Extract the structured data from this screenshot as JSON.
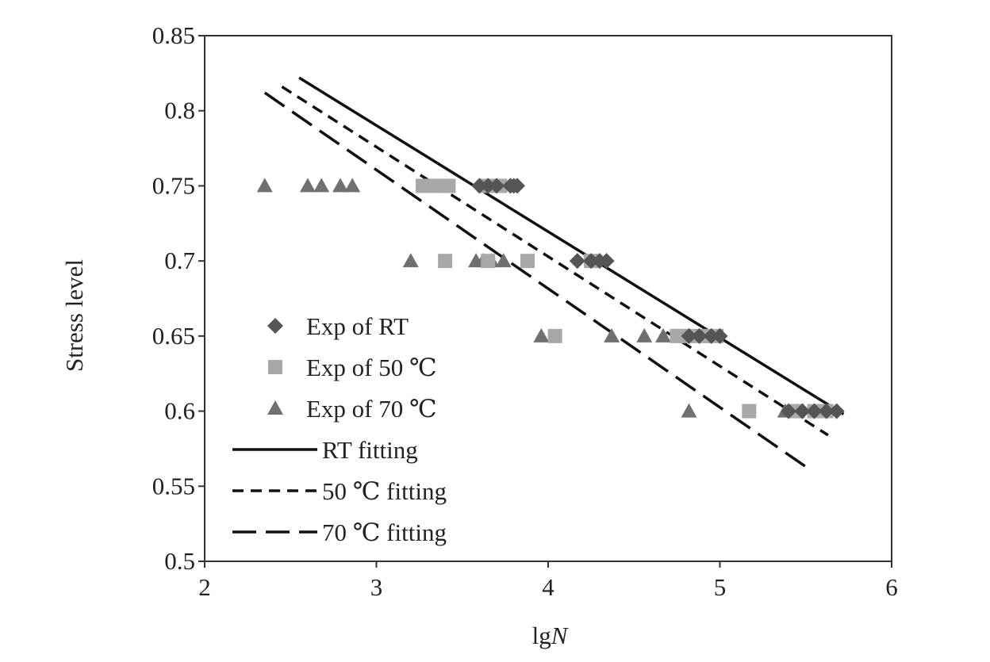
{
  "chart_data": {
    "type": "scatter",
    "title": "",
    "xlabel": "lg",
    "xlabel_italic": "N",
    "ylabel": "Stress level",
    "xlim": [
      2,
      6
    ],
    "ylim": [
      0.5,
      0.85
    ],
    "x_ticks": [
      "2",
      "3",
      "4",
      "5",
      "6"
    ],
    "y_ticks": [
      "0.5",
      "0.55",
      "0.6",
      "0.65",
      "0.7",
      "0.75",
      "0.8",
      "0.85"
    ],
    "grid": false,
    "legend_position": "bottom-left",
    "series": [
      {
        "name": "Exp of RT",
        "kind": "points",
        "marker": "diamond",
        "color": "#555555",
        "points": [
          [
            3.6,
            0.75
          ],
          [
            3.65,
            0.75
          ],
          [
            3.7,
            0.75
          ],
          [
            3.78,
            0.75
          ],
          [
            3.8,
            0.75
          ],
          [
            3.82,
            0.75
          ],
          [
            4.17,
            0.7
          ],
          [
            4.25,
            0.7
          ],
          [
            4.3,
            0.7
          ],
          [
            4.34,
            0.7
          ],
          [
            4.82,
            0.65
          ],
          [
            4.88,
            0.65
          ],
          [
            4.95,
            0.65
          ],
          [
            5.0,
            0.65
          ],
          [
            5.4,
            0.6
          ],
          [
            5.48,
            0.6
          ],
          [
            5.55,
            0.6
          ],
          [
            5.62,
            0.6
          ],
          [
            5.68,
            0.6
          ]
        ]
      },
      {
        "name": "Exp of 50 ℃",
        "kind": "points",
        "marker": "square",
        "color": "#a8a8a8",
        "points": [
          [
            3.27,
            0.75
          ],
          [
            3.35,
            0.75
          ],
          [
            3.42,
            0.75
          ],
          [
            3.65,
            0.75
          ],
          [
            3.72,
            0.75
          ],
          [
            3.4,
            0.7
          ],
          [
            3.65,
            0.7
          ],
          [
            3.88,
            0.7
          ],
          [
            4.25,
            0.7
          ],
          [
            4.04,
            0.65
          ],
          [
            4.75,
            0.65
          ],
          [
            4.82,
            0.65
          ],
          [
            4.9,
            0.65
          ],
          [
            4.98,
            0.65
          ],
          [
            5.17,
            0.6
          ],
          [
            5.45,
            0.6
          ],
          [
            5.55,
            0.6
          ],
          [
            5.62,
            0.6
          ]
        ]
      },
      {
        "name": "Exp of 70 ℃",
        "kind": "points",
        "marker": "triangle",
        "color": "#707070",
        "points": [
          [
            2.35,
            0.75
          ],
          [
            2.6,
            0.75
          ],
          [
            2.68,
            0.75
          ],
          [
            2.79,
            0.75
          ],
          [
            2.86,
            0.75
          ],
          [
            3.2,
            0.7
          ],
          [
            3.58,
            0.7
          ],
          [
            3.62,
            0.7
          ],
          [
            3.67,
            0.7
          ],
          [
            3.74,
            0.7
          ],
          [
            3.96,
            0.65
          ],
          [
            4.37,
            0.65
          ],
          [
            4.56,
            0.65
          ],
          [
            4.67,
            0.65
          ],
          [
            4.75,
            0.65
          ],
          [
            4.82,
            0.6
          ],
          [
            5.38,
            0.6
          ],
          [
            5.45,
            0.6
          ]
        ]
      },
      {
        "name": "RT fitting",
        "kind": "line",
        "dash": "solid",
        "color": "#111111",
        "x": [
          2.55,
          5.72
        ],
        "y": [
          0.822,
          0.598
        ]
      },
      {
        "name": "50 ℃ fitting",
        "kind": "line",
        "dash": "short",
        "color": "#111111",
        "x": [
          2.45,
          5.63
        ],
        "y": [
          0.816,
          0.584
        ]
      },
      {
        "name": "70 ℃ fitting",
        "kind": "line",
        "dash": "long",
        "color": "#111111",
        "x": [
          2.35,
          5.5
        ],
        "y": [
          0.812,
          0.563
        ]
      }
    ]
  }
}
